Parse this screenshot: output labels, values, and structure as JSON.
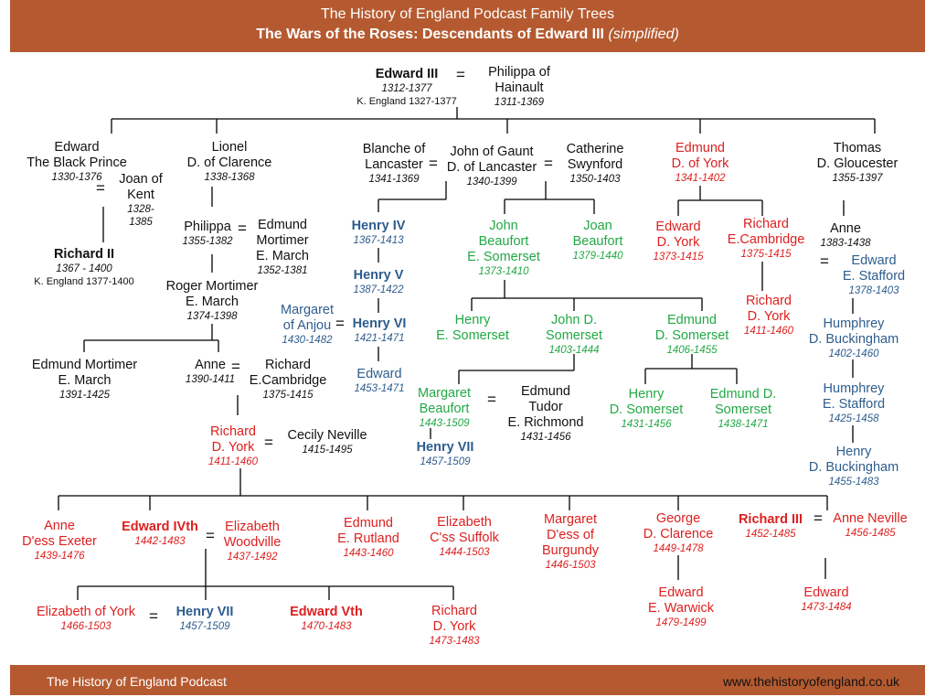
{
  "header": {
    "line1": "The History of England Podcast Family Trees",
    "line2": "The Wars of the Roses: Descendants of Edward III",
    "line2_note": "(simplified)"
  },
  "footer": {
    "left": "The History of England Podcast",
    "right": "www.thehistoryofengland.co.uk"
  },
  "colors": {
    "banner": "#b55a30",
    "york": "#dd2020",
    "beaufort": "#22a845",
    "lancaster": "#2e5d8e"
  },
  "people": {
    "edward3": {
      "name": "Edward III",
      "dates": "1312-1377",
      "note": "K. England 1327-1377"
    },
    "philippa_hainault": {
      "name1": "Philippa of",
      "name2": "Hainault",
      "dates": "1311-1369"
    },
    "black_prince": {
      "name1": "Edward",
      "name2": "The Black Prince",
      "dates": "1330-1376"
    },
    "joan_kent": {
      "name1": "Joan of",
      "name2": "Kent",
      "dates1": "1328-",
      "dates2": "1385"
    },
    "richard2": {
      "name": "Richard II",
      "dates": "1367 - 1400",
      "note": "K. England 1377-1400"
    },
    "lionel": {
      "name1": "Lionel",
      "name2": "D. of Clarence",
      "dates": "1338-1368"
    },
    "philippa": {
      "name": "Philippa",
      "dates": "1355-1382"
    },
    "edmund_mortimer_1": {
      "name1": "Edmund",
      "name2": "Mortimer",
      "name3": "E. March",
      "dates": "1352-1381"
    },
    "roger_mortimer": {
      "name1": "Roger Mortimer",
      "name2": "E. March",
      "dates": "1374-1398"
    },
    "edmund_mortimer_2": {
      "name1": "Edmund Mortimer",
      "name2": "E. March",
      "dates": "1391-1425"
    },
    "anne_mortimer": {
      "name": "Anne",
      "dates": "1390-1411"
    },
    "richard_cambridge_1": {
      "name1": "Richard",
      "name2": "E.Cambridge",
      "dates": "1375-1415"
    },
    "richard_york_1": {
      "name1": "Richard",
      "name2": "D. York",
      "dates": "1411-1460"
    },
    "cecily": {
      "name": "Cecily Neville",
      "dates": "1415-1495"
    },
    "blanche": {
      "name1": "Blanche of",
      "name2": "Lancaster",
      "dates": "1341-1369"
    },
    "gaunt": {
      "name1": "John of Gaunt",
      "name2": "D. of Lancaster",
      "dates": "1340-1399"
    },
    "catherine": {
      "name1": "Catherine",
      "name2": "Swynford",
      "dates": "1350-1403"
    },
    "henry4": {
      "name": "Henry IV",
      "dates": "1367-1413"
    },
    "henry5": {
      "name": "Henry V",
      "dates": "1387-1422"
    },
    "margaret_anjou": {
      "name1": "Margaret",
      "name2": "of Anjou",
      "dates": "1430-1482"
    },
    "henry6": {
      "name": "Henry VI",
      "dates": "1421-1471"
    },
    "edward_lancaster": {
      "name": "Edward",
      "dates": "1453-1471"
    },
    "john_beaufort": {
      "name1": "John",
      "name2": "Beaufort",
      "name3": "E. Somerset",
      "dates": "1373-1410"
    },
    "joan_beaufort": {
      "name1": "Joan",
      "name2": "Beaufort",
      "dates": "1379-1440"
    },
    "henry_somerset_1": {
      "name1": "Henry",
      "name2": "E. Somerset"
    },
    "john_somerset": {
      "name1": "John  D.",
      "name2": "Somerset",
      "dates": "1403-1444"
    },
    "edmund_somerset_1": {
      "name1": "Edmund",
      "name2": "D. Somerset",
      "dates": "1406-1455"
    },
    "margaret_beaufort": {
      "name1": "Margaret",
      "name2": "Beaufort",
      "dates": "1443-1509"
    },
    "edmund_tudor": {
      "name1": "Edmund",
      "name2": "Tudor",
      "name3": "E. Richmond",
      "dates": "1431-1456"
    },
    "henry7_a": {
      "name": "Henry VII",
      "dates": "1457-1509"
    },
    "henry_somerset_2": {
      "name1": "Henry",
      "name2": "D. Somerset",
      "dates": "1431-1456"
    },
    "edmund_somerset_2": {
      "name1": "Edmund  D.",
      "name2": "Somerset",
      "dates": "1438-1471"
    },
    "edmund_york": {
      "name1": "Edmund",
      "name2": "D. of York",
      "dates": "1341-1402"
    },
    "edward_york": {
      "name1": "Edward",
      "name2": "D. York",
      "dates": "1373-1415"
    },
    "richard_cambridge_2": {
      "name1": "Richard",
      "name2": "E.Cambridge",
      "dates": "1375-1415"
    },
    "richard_york_2": {
      "name1": "Richard",
      "name2": "D. York",
      "dates": "1411-1460"
    },
    "thomas": {
      "name1": "Thomas",
      "name2": "D. Gloucester",
      "dates": "1355-1397"
    },
    "anne_gloucester": {
      "name": "Anne",
      "dates": "1383-1438"
    },
    "edward_stafford": {
      "name1": "Edward",
      "name2": "E. Stafford",
      "dates": "1378-1403"
    },
    "humphrey_1": {
      "name1": "Humphrey",
      "name2": "D. Buckingham",
      "dates": "1402-1460"
    },
    "humphrey_2": {
      "name1": "Humphrey",
      "name2": "E. Stafford",
      "dates": "1425-1458"
    },
    "henry_buckingham": {
      "name1": "Henry",
      "name2": "D. Buckingham",
      "dates": "1455-1483"
    },
    "anne_exeter": {
      "name1": "Anne",
      "name2": "D'ess Exeter",
      "dates": "1439-1476"
    },
    "edward4": {
      "name": "Edward IVth",
      "dates": "1442-1483"
    },
    "elizabeth_woodville": {
      "name1": "Elizabeth",
      "name2": "Woodville",
      "dates": "1437-1492"
    },
    "edmund_rutland": {
      "name1": "Edmund",
      "name2": "E. Rutland",
      "dates": "1443-1460"
    },
    "elizabeth_suffolk": {
      "name1": "Elizabeth",
      "name2": "C'ss Suffolk",
      "dates": "1444-1503"
    },
    "margaret_burgundy": {
      "name1": "Margaret",
      "name2": "D'ess of",
      "name3": "Burgundy",
      "dates": "1446-1503"
    },
    "george_clarence": {
      "name1": "George",
      "name2": "D. Clarence",
      "dates": "1449-1478"
    },
    "richard3": {
      "name": "Richard III",
      "dates": "1452-1485"
    },
    "anne_neville": {
      "name": "Anne Neville",
      "dates": "1456-1485"
    },
    "elizabeth_york": {
      "name": "Elizabeth of York",
      "dates": "1466-1503"
    },
    "henry7_b": {
      "name": "Henry VII",
      "dates": "1457-1509"
    },
    "edward5": {
      "name": "Edward Vth",
      "dates": "1470-1483"
    },
    "richard_york_3": {
      "name1": "Richard",
      "name2": "D. York",
      "dates": "1473-1483"
    },
    "edward_warwick": {
      "name1": "Edward",
      "name2": "E. Warwick",
      "dates": "1479-1499"
    },
    "edward_r3": {
      "name": "Edward",
      "dates": "1473-1484"
    }
  }
}
